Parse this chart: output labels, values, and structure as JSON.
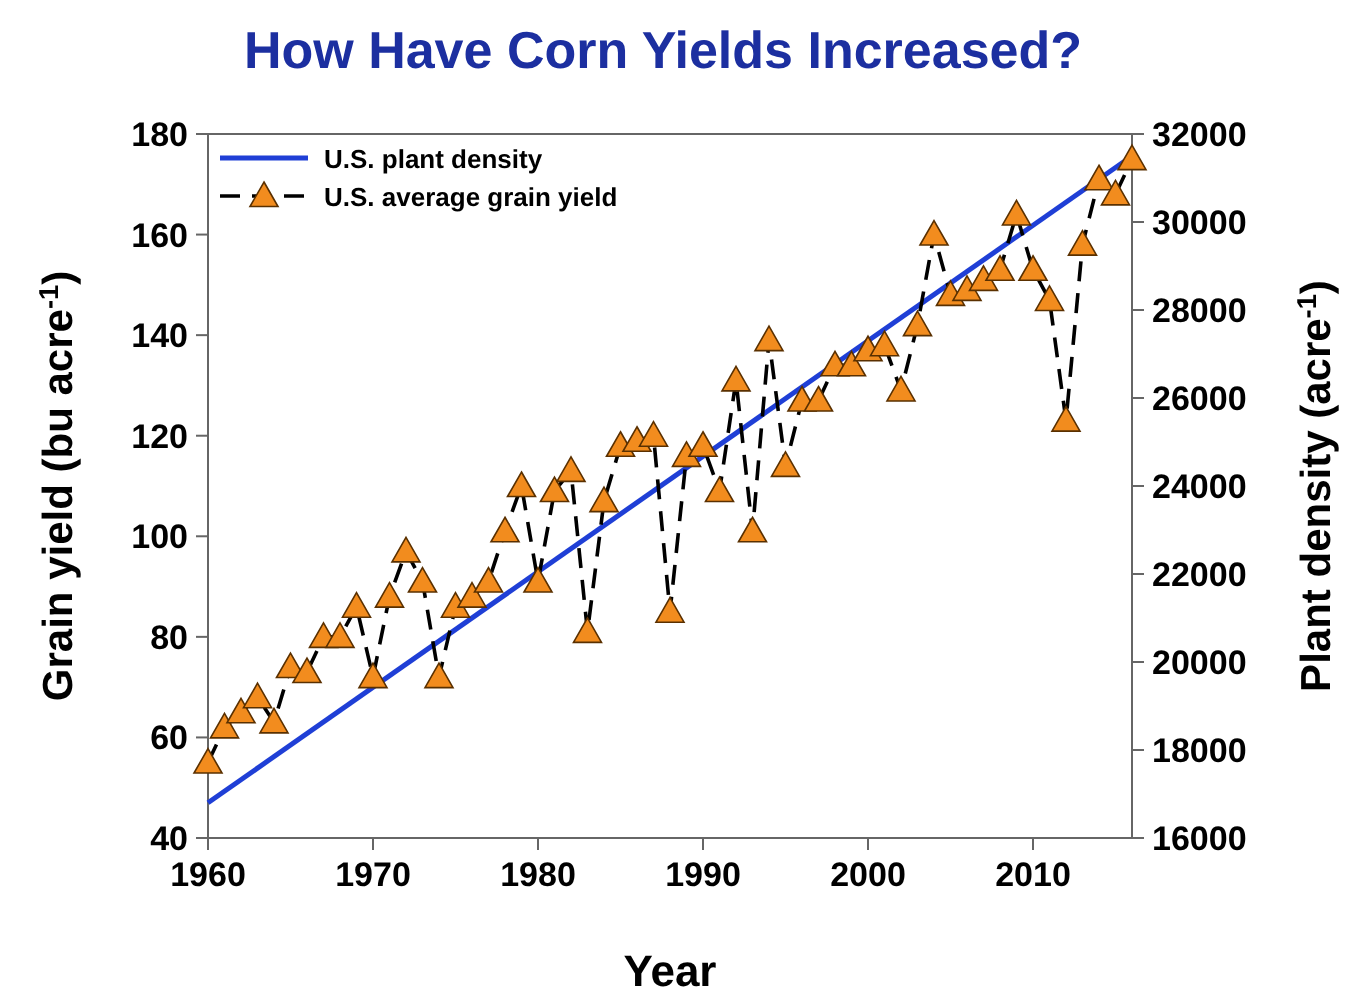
{
  "chart_data": {
    "type": "line",
    "title": "How Have Corn Yields Increased?",
    "xlabel": "Year",
    "ylabel": "Grain yield (bu acre$^{-1}$)",
    "y2label": "Plant density (acre$^{-1}$)",
    "xlim": [
      1960,
      2016
    ],
    "xticks": [
      1960,
      1970,
      1980,
      1990,
      2000,
      2010
    ],
    "ylim": [
      40,
      180
    ],
    "yticks": [
      40,
      60,
      80,
      100,
      120,
      140,
      160,
      180
    ],
    "y2lim": [
      16000,
      32000
    ],
    "y2ticks": [
      16000,
      18000,
      20000,
      22000,
      24000,
      26000,
      28000,
      30000,
      32000
    ],
    "grid": false,
    "legend": "top left",
    "series": [
      {
        "name": "U.S. plant density",
        "color": "#1f3fd6",
        "axis": "y2",
        "line_style": "solid",
        "marker": "none",
        "x": [
          1960,
          2016
        ],
        "values": [
          16800,
          31500
        ]
      },
      {
        "name": "U.S. average grain yield",
        "color": "#f28c1e",
        "axis": "y",
        "line_style": "dashed",
        "marker": "triangle",
        "x": [
          1960,
          1961,
          1962,
          1963,
          1964,
          1965,
          1966,
          1967,
          1968,
          1969,
          1970,
          1971,
          1972,
          1973,
          1974,
          1975,
          1976,
          1977,
          1978,
          1979,
          1980,
          1981,
          1982,
          1983,
          1984,
          1985,
          1986,
          1987,
          1988,
          1989,
          1990,
          1991,
          1992,
          1993,
          1994,
          1995,
          1996,
          1997,
          1998,
          1999,
          2000,
          2001,
          2002,
          2003,
          2004,
          2005,
          2006,
          2007,
          2008,
          2009,
          2010,
          2011,
          2012,
          2013,
          2014,
          2015,
          2016
        ],
        "values": [
          55,
          62,
          65,
          68,
          63,
          74,
          73,
          80,
          80,
          86,
          72,
          88,
          97,
          91,
          72,
          86,
          88,
          91,
          101,
          110,
          91,
          109,
          113,
          81,
          107,
          118,
          119,
          120,
          85,
          116,
          118,
          109,
          131,
          101,
          139,
          114,
          127,
          127,
          134,
          134,
          137,
          138,
          129,
          142,
          160,
          148,
          149,
          151,
          153,
          164,
          153,
          147,
          123,
          158,
          171,
          168,
          175
        ]
      }
    ]
  }
}
